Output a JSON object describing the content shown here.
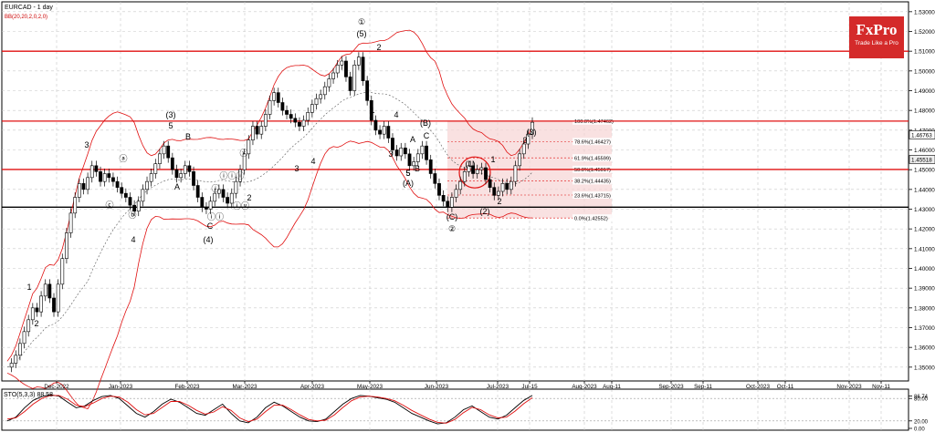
{
  "header": {
    "symbol": "EURCAD - 1 day",
    "indicator": "BB(20,20,2,0,2,0)"
  },
  "brand": {
    "name": "FxPro",
    "tagline": "Trade Like a Pro"
  },
  "colors": {
    "level": "#e01010",
    "candle": "#000000",
    "band": "#e01010",
    "fib": "#e01010",
    "stoch_k": "#000000",
    "stoch_d": "#e01010",
    "up_wick_accent": "#2a9d2a"
  },
  "chart_data": [
    {
      "type": "candlestick",
      "title": "EURCAD - 1 day",
      "y_ticks": [
        "1.53000",
        "1.52000",
        "1.51000",
        "1.50000",
        "1.49000",
        "1.48000",
        "1.47000",
        "1.46000",
        "1.45000",
        "1.44000",
        "1.43000",
        "1.42000",
        "1.41000",
        "1.40000",
        "1.39000",
        "1.38000",
        "1.37000",
        "1.36000",
        "1.35000"
      ],
      "ylim": [
        1.343,
        1.535
      ],
      "x_ticks": [
        "Dec-2022",
        "Jan-2023",
        "Feb-2023",
        "Mar-2023",
        "Apr-2023",
        "May-2023",
        "Jun-2023",
        "Jul-2023",
        "Jul-15",
        "Aug-2023",
        "Aug-11",
        "Sep-2023",
        "Sep-11",
        "Oct-2023",
        "Oct-11",
        "Nov-2023",
        "Nov-11"
      ],
      "price_tags": [
        {
          "label": "1.46763",
          "value": 1.46763
        },
        {
          "label": "1.45518",
          "value": 1.45518
        }
      ],
      "horizontal_levels": [
        1.51,
        1.4746,
        1.4501,
        1.431
      ],
      "close_path": [
        1.35,
        1.352,
        1.356,
        1.362,
        1.368,
        1.374,
        1.38,
        1.378,
        1.386,
        1.392,
        1.385,
        1.378,
        1.392,
        1.405,
        1.418,
        1.428,
        1.436,
        1.443,
        1.44,
        1.446,
        1.452,
        1.449,
        1.444,
        1.448,
        1.446,
        1.444,
        1.441,
        1.438,
        1.436,
        1.432,
        1.429,
        1.434,
        1.44,
        1.444,
        1.448,
        1.453,
        1.458,
        1.462,
        1.456,
        1.45,
        1.446,
        1.448,
        1.452,
        1.449,
        1.442,
        1.436,
        1.431,
        1.43,
        1.434,
        1.438,
        1.44,
        1.436,
        1.433,
        1.438,
        1.444,
        1.45,
        1.458,
        1.465,
        1.472,
        1.468,
        1.472,
        1.478,
        1.485,
        1.489,
        1.484,
        1.48,
        1.478,
        1.476,
        1.474,
        1.472,
        1.475,
        1.479,
        1.483,
        1.486,
        1.488,
        1.492,
        1.496,
        1.499,
        1.503,
        1.505,
        1.497,
        1.49,
        1.503,
        1.507,
        1.495,
        1.485,
        1.475,
        1.47,
        1.468,
        1.472,
        1.466,
        1.46,
        1.457,
        1.461,
        1.458,
        1.452,
        1.454,
        1.458,
        1.462,
        1.455,
        1.448,
        1.443,
        1.437,
        1.434,
        1.431,
        1.436,
        1.44,
        1.444,
        1.449,
        1.452,
        1.448,
        1.45,
        1.451,
        1.445,
        1.441,
        1.437,
        1.439,
        1.443,
        1.44,
        1.444,
        1.452,
        1.458,
        1.463,
        1.468,
        1.474
      ],
      "wave_labels": [
        "1",
        "2",
        "3",
        "4",
        "(3)",
        "5",
        "(4)",
        "A",
        "B",
        "C",
        "2",
        "3",
        "4",
        "5",
        "(5)",
        "①",
        "1",
        "2",
        "3",
        "4",
        "5",
        "A",
        "B",
        "C",
        "(A)",
        "(B)",
        "(C)",
        "②",
        "(1)",
        "(2)",
        "1",
        "2",
        "3",
        "(3)",
        "ⓐ",
        "ⓑ",
        "ⓒ",
        "ⓘ",
        "ⓘⓘ",
        "ⓘⓘⓘ",
        "ⓘⓥ",
        "ⓥ"
      ],
      "fibonacci": [
        {
          "label": "100.0%(1.47462)",
          "value": 1.47462
        },
        {
          "label": "78.6%(1.46427)",
          "value": 1.46427
        },
        {
          "label": "61.9%(1.45599)",
          "value": 1.45599
        },
        {
          "label": "50.0%(1.45017)",
          "value": 1.45017
        },
        {
          "label": "38.2%(1.44435)",
          "value": 1.44435
        },
        {
          "label": "23.6%(1.43715)",
          "value": 1.43715
        },
        {
          "label": "0.0%(1.42552)",
          "value": 1.42552
        }
      ]
    },
    {
      "type": "line",
      "title": "STO(5,3,3) 88.58",
      "y_ticks": [
        "86.74",
        "80.00",
        "20.00",
        "0.00"
      ],
      "ylim": [
        0,
        100
      ],
      "series": [
        {
          "name": "%K",
          "values": [
            20,
            30,
            55,
            75,
            85,
            90,
            86,
            70,
            55,
            60,
            75,
            85,
            88,
            80,
            60,
            40,
            30,
            45,
            65,
            78,
            70,
            55,
            40,
            35,
            50,
            65,
            40,
            20,
            15,
            30,
            55,
            70,
            60,
            45,
            30,
            20,
            18,
            25,
            45,
            65,
            80,
            88,
            86,
            82,
            78,
            70,
            55,
            40,
            30,
            20,
            12,
            15,
            30,
            50,
            60,
            45,
            30,
            25,
            35,
            55,
            75,
            88
          ]
        },
        {
          "name": "%D",
          "values": [
            25,
            28,
            45,
            65,
            80,
            88,
            88,
            78,
            62,
            58,
            68,
            80,
            86,
            84,
            70,
            50,
            36,
            40,
            56,
            72,
            72,
            62,
            48,
            38,
            44,
            58,
            48,
            28,
            18,
            25,
            45,
            62,
            62,
            50,
            36,
            24,
            20,
            22,
            36,
            56,
            74,
            84,
            86,
            84,
            80,
            74,
            62,
            48,
            36,
            25,
            16,
            14,
            24,
            42,
            56,
            50,
            36,
            28,
            30,
            46,
            66,
            82
          ]
        }
      ]
    }
  ]
}
